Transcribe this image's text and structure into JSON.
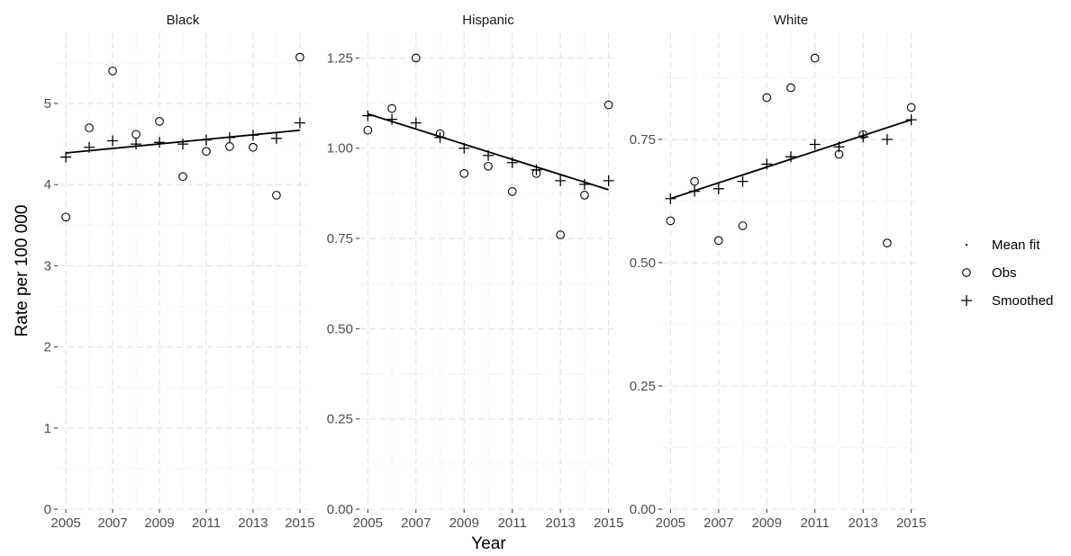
{
  "chart_data": {
    "type": "scatter",
    "facets": [
      {
        "title": "Black",
        "ylim": [
          0,
          5.65
        ],
        "yticks": [
          0,
          1,
          2,
          3,
          4,
          5
        ],
        "ytick_labels": [
          "0",
          "1",
          "2",
          "3",
          "4",
          "5"
        ],
        "obs": [
          3.6,
          4.7,
          5.4,
          4.62,
          4.78,
          4.1,
          4.41,
          4.47,
          4.46,
          3.87,
          5.57
        ],
        "smoothed": [
          4.34,
          4.46,
          4.54,
          4.5,
          4.52,
          4.5,
          4.55,
          4.58,
          4.61,
          4.57,
          4.76
        ],
        "mean_fit": [
          4.39,
          4.67
        ]
      },
      {
        "title": "Hispanic",
        "ylim": [
          0,
          1.27
        ],
        "yticks": [
          0,
          0.25,
          0.5,
          0.75,
          1.0,
          1.25
        ],
        "ytick_labels": [
          "0.00",
          "0.25",
          "0.50",
          "0.75",
          "1.00",
          "1.25"
        ],
        "obs": [
          1.05,
          1.11,
          1.25,
          1.04,
          0.93,
          0.95,
          0.88,
          0.93,
          0.76,
          0.87,
          1.12
        ],
        "smoothed": [
          1.09,
          1.08,
          1.07,
          1.03,
          1.0,
          0.98,
          0.96,
          0.94,
          0.91,
          0.9,
          0.91
        ],
        "mean_fit": [
          1.095,
          0.885
        ]
      },
      {
        "title": "White",
        "ylim": [
          0,
          0.93
        ],
        "yticks": [
          0,
          0.25,
          0.5,
          0.75
        ],
        "ytick_labels": [
          "0.00",
          "0.25",
          "0.50",
          "0.75"
        ],
        "obs": [
          0.585,
          0.665,
          0.545,
          0.575,
          0.835,
          0.855,
          0.915,
          0.72,
          0.76,
          0.54,
          0.815
        ],
        "smoothed": [
          0.63,
          0.645,
          0.65,
          0.665,
          0.7,
          0.715,
          0.74,
          0.735,
          0.755,
          0.75,
          0.79
        ],
        "mean_fit": [
          0.63,
          0.79
        ]
      }
    ],
    "x": [
      2005,
      2006,
      2007,
      2008,
      2009,
      2010,
      2011,
      2012,
      2013,
      2014,
      2015
    ],
    "xlim": [
      2005,
      2015
    ],
    "xticks": [
      2005,
      2007,
      2009,
      2011,
      2013,
      2015
    ],
    "xtick_labels": [
      "2005",
      "2007",
      "2009",
      "2011",
      "2013",
      "2015"
    ],
    "xlabel": "Year",
    "ylabel": "Rate per 100 000",
    "legend": {
      "position": "right",
      "items": [
        {
          "label": "Mean fit",
          "symbol": "dot"
        },
        {
          "label": "Obs",
          "symbol": "circle"
        },
        {
          "label": "Smoothed",
          "symbol": "plus"
        }
      ]
    },
    "grid": true,
    "scales": "free_y"
  }
}
